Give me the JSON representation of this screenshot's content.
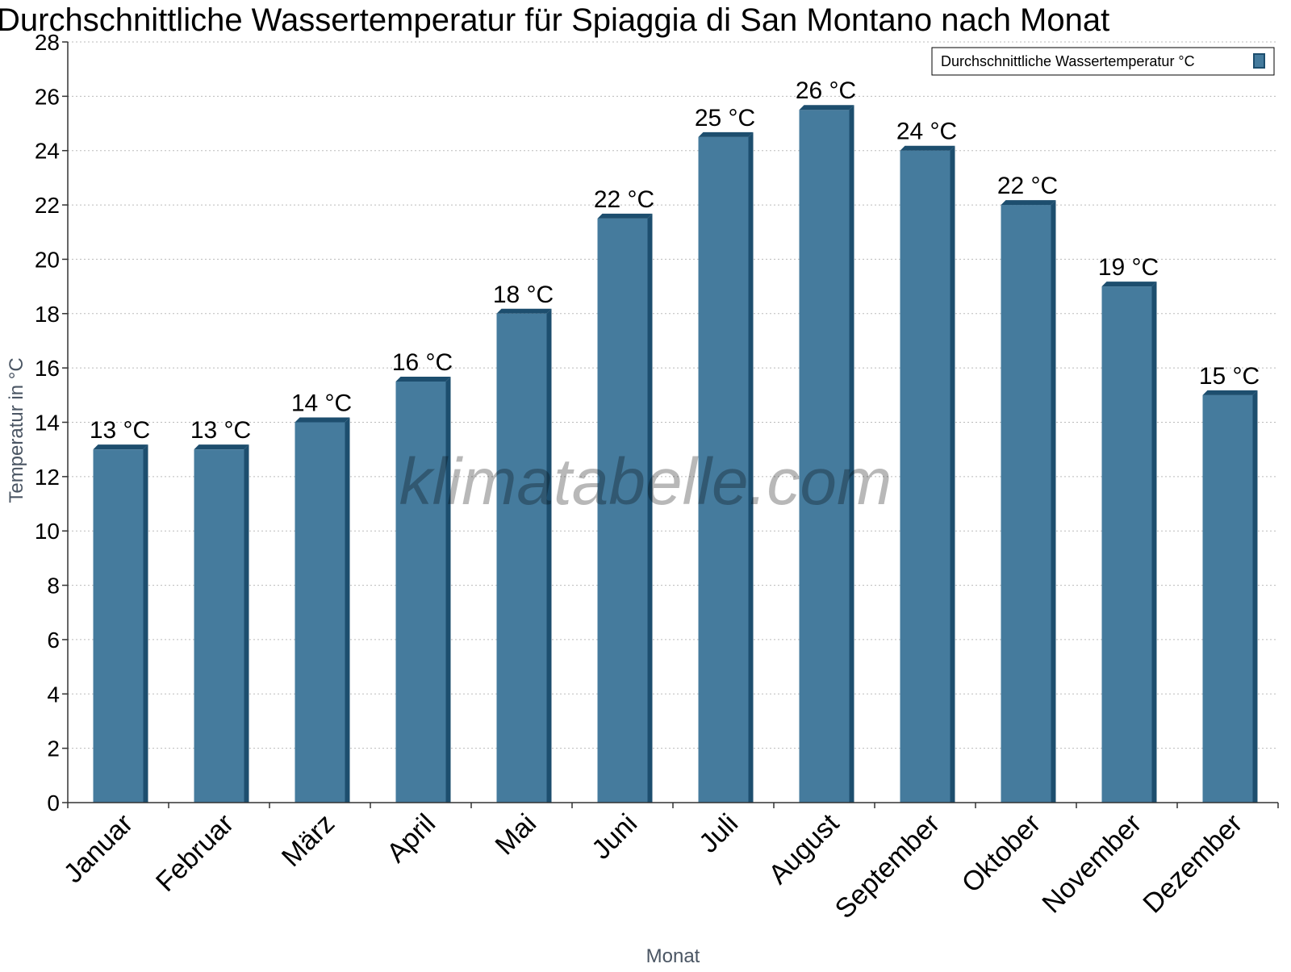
{
  "chart_data": {
    "type": "bar",
    "title": "Durchschnittliche Wassertemperatur für Spiaggia di San Montano nach Monat",
    "xlabel": "Monat",
    "ylabel": "Temperatur in °C",
    "categories": [
      "Januar",
      "Februar",
      "März",
      "April",
      "Mai",
      "Juni",
      "Juli",
      "August",
      "September",
      "Oktober",
      "November",
      "Dezember"
    ],
    "series": [
      {
        "name": "Durchschnittliche Wassertemperatur °C",
        "values": [
          13,
          13,
          14,
          15.5,
          18,
          21.5,
          24.5,
          25.5,
          24,
          22,
          19,
          15
        ],
        "labels": [
          "13 °C",
          "13 °C",
          "14 °C",
          "16 °C",
          "18 °C",
          "22 °C",
          "25 °C",
          "26 °C",
          "24 °C",
          "22 °C",
          "19 °C",
          "15 °C"
        ],
        "color": "#457b9d",
        "edge_color": "#1d4e6e"
      }
    ],
    "ylim": [
      0,
      28
    ],
    "yticks": [
      0,
      2,
      4,
      6,
      8,
      10,
      12,
      14,
      16,
      18,
      20,
      22,
      24,
      26,
      28
    ],
    "grid": true,
    "legend": "top-right",
    "watermark": "klimatabelle.com"
  }
}
